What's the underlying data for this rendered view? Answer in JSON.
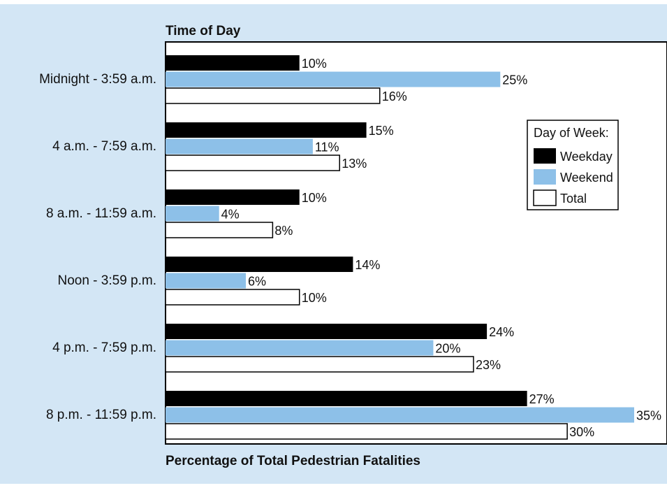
{
  "chart_data": {
    "type": "bar",
    "orientation": "horizontal",
    "title": "Time of Day",
    "xlabel": "Percentage of Total Pedestrian Fatalities",
    "categories": [
      "Midnight - 3:59 a.m.",
      "4 a.m. - 7:59 a.m.",
      "8 a.m. - 11:59 a.m.",
      "Noon - 3:59 p.m.",
      "4 p.m. - 7:59 p.m.",
      "8 p.m. - 11:59 p.m."
    ],
    "legend_title": "Day of Week:",
    "legend_position": "right",
    "series": [
      {
        "name": "Weekday",
        "color": "#000000",
        "values": [
          10,
          15,
          10,
          14,
          24,
          27
        ],
        "labels": [
          "10%",
          "15%",
          "10%",
          "14%",
          "24%",
          "27%"
        ]
      },
      {
        "name": "Weekend",
        "color": "#8dc0e8",
        "values": [
          25,
          11,
          4,
          6,
          20,
          35
        ],
        "labels": [
          "25%",
          "11%",
          "4%",
          "6%",
          "20%",
          "35%"
        ]
      },
      {
        "name": "Total",
        "color": "#ffffff",
        "values": [
          16,
          13,
          8,
          10,
          23,
          30
        ],
        "labels": [
          "16%",
          "13%",
          "8%",
          "10%",
          "23%",
          "30%"
        ]
      }
    ],
    "xlim": [
      0,
      35
    ],
    "grid": false
  }
}
